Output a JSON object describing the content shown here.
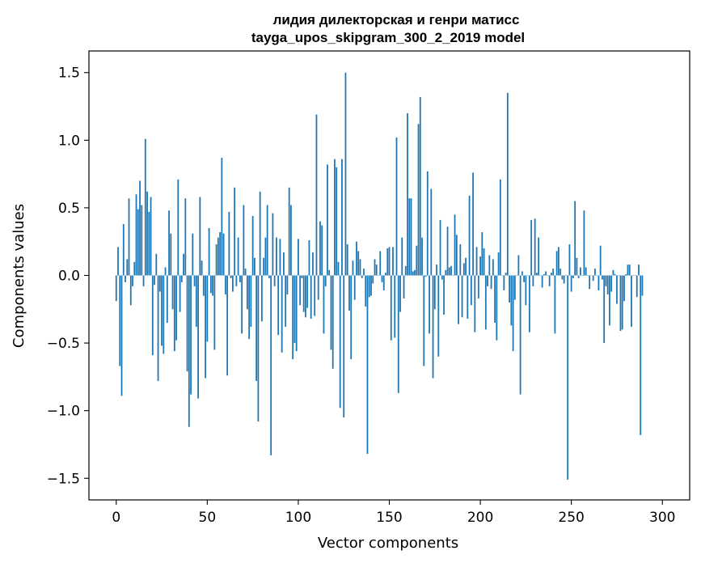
{
  "chart_data": {
    "type": "bar",
    "title_line1": "лидия дилекторская и генри матисс",
    "title_line2": "tayga_upos_skipgram_300_2_2019 model",
    "xlabel": "Vector components",
    "ylabel": "Components values",
    "xlim": [
      -15,
      315
    ],
    "ylim": [
      -1.66,
      1.66
    ],
    "xticks": [
      0,
      50,
      100,
      150,
      200,
      250,
      300
    ],
    "yticks": [
      -1.5,
      -1.0,
      -0.5,
      0.0,
      0.5,
      1.0,
      1.5
    ],
    "xtick_labels": [
      "0",
      "50",
      "100",
      "150",
      "200",
      "250",
      "300"
    ],
    "ytick_labels": [
      "−1.5",
      "−1.0",
      "−0.5",
      "0.0",
      "0.5",
      "1.0",
      "1.5"
    ],
    "grid": false,
    "bar_color": "#1f77b4",
    "values": [
      -0.19,
      0.21,
      -0.67,
      -0.89,
      0.38,
      -0.05,
      0.12,
      0.57,
      -0.22,
      -0.08,
      0.1,
      0.6,
      0.49,
      0.7,
      0.52,
      -0.08,
      1.01,
      0.62,
      0.47,
      0.58,
      -0.59,
      -0.07,
      0.16,
      -0.78,
      -0.12,
      -0.52,
      -0.58,
      0.06,
      -0.35,
      0.48,
      0.31,
      -0.25,
      -0.56,
      -0.48,
      0.71,
      -0.27,
      -0.05,
      0.16,
      0.57,
      -0.71,
      -1.12,
      -0.88,
      0.31,
      -0.08,
      -0.38,
      -0.91,
      0.58,
      0.11,
      -0.15,
      -0.76,
      -0.49,
      0.35,
      -0.13,
      -0.15,
      -0.55,
      0.23,
      0.28,
      0.32,
      0.87,
      0.31,
      -0.14,
      -0.74,
      0.47,
      -0.02,
      -0.12,
      0.65,
      -0.08,
      0.28,
      -0.05,
      -0.43,
      0.52,
      0.05,
      -0.25,
      -0.47,
      -0.38,
      0.44,
      0.13,
      -0.78,
      -1.08,
      0.62,
      -0.34,
      0.13,
      0.28,
      0.52,
      -0.02,
      -1.33,
      0.46,
      -0.08,
      0.28,
      -0.44,
      0.27,
      -0.57,
      0.17,
      -0.38,
      -0.14,
      0.65,
      0.52,
      -0.62,
      -0.5,
      -0.56,
      0.27,
      -0.22,
      -0.02,
      -0.27,
      -0.31,
      -0.24,
      0.26,
      -0.32,
      0.17,
      -0.3,
      1.19,
      -0.18,
      0.4,
      0.37,
      -0.43,
      -0.08,
      0.82,
      0.04,
      -0.55,
      -0.69,
      0.86,
      0.8,
      0.1,
      -0.98,
      0.86,
      -1.05,
      1.5,
      0.23,
      -0.26,
      -0.62,
      0.11,
      -0.18,
      0.25,
      0.18,
      0.12,
      -0.02,
      0.05,
      -0.23,
      -1.32,
      -0.16,
      -0.15,
      -0.06,
      0.12,
      0.08,
      0.0,
      0.18,
      -0.05,
      -0.11,
      0.02,
      0.2,
      0.21,
      -0.48,
      0.21,
      -0.46,
      1.02,
      -0.87,
      -0.27,
      0.28,
      -0.17,
      0.07,
      1.2,
      0.57,
      0.57,
      0.03,
      0.04,
      0.22,
      1.12,
      1.32,
      0.28,
      -0.67,
      -0.01,
      0.77,
      -0.43,
      0.64,
      -0.76,
      -0.25,
      0.08,
      -0.6,
      0.41,
      -0.03,
      -0.29,
      0.04,
      0.36,
      0.06,
      0.07,
      0.0,
      0.45,
      0.3,
      -0.36,
      0.23,
      -0.31,
      0.09,
      0.13,
      -0.32,
      0.59,
      -0.22,
      0.76,
      -0.42,
      0.21,
      -0.17,
      0.14,
      0.32,
      0.2,
      -0.4,
      -0.08,
      0.15,
      -0.1,
      0.12,
      -0.35,
      -0.48,
      0.17,
      0.71,
      0.0,
      -0.11,
      0.02,
      1.35,
      -0.2,
      -0.37,
      -0.56,
      -0.18,
      0.0,
      0.15,
      -0.88,
      0.03,
      -0.05,
      -0.22,
      0.0,
      -0.42,
      0.41,
      -0.08,
      0.42,
      0.02,
      0.28,
      0.0,
      -0.09,
      0.01,
      0.03,
      0.0,
      -0.08,
      0.02,
      0.05,
      -0.43,
      0.18,
      0.21,
      0.05,
      -0.03,
      -0.06,
      0.0,
      -1.51,
      0.23,
      -0.12,
      -0.02,
      0.55,
      0.13,
      -0.02,
      0.06,
      0.0,
      0.48,
      0.06,
      0.0,
      -0.1,
      0.0,
      -0.04,
      0.05,
      0.0,
      -0.11,
      0.22,
      -0.03,
      -0.5,
      -0.08,
      -0.14,
      -0.37,
      -0.12,
      0.04,
      0.01,
      -0.21,
      0.0,
      -0.41,
      -0.4,
      -0.19,
      0.01,
      0.08,
      0.08,
      -0.38,
      0.0,
      0.0,
      -0.16,
      0.08,
      -1.18,
      -0.15
    ]
  }
}
